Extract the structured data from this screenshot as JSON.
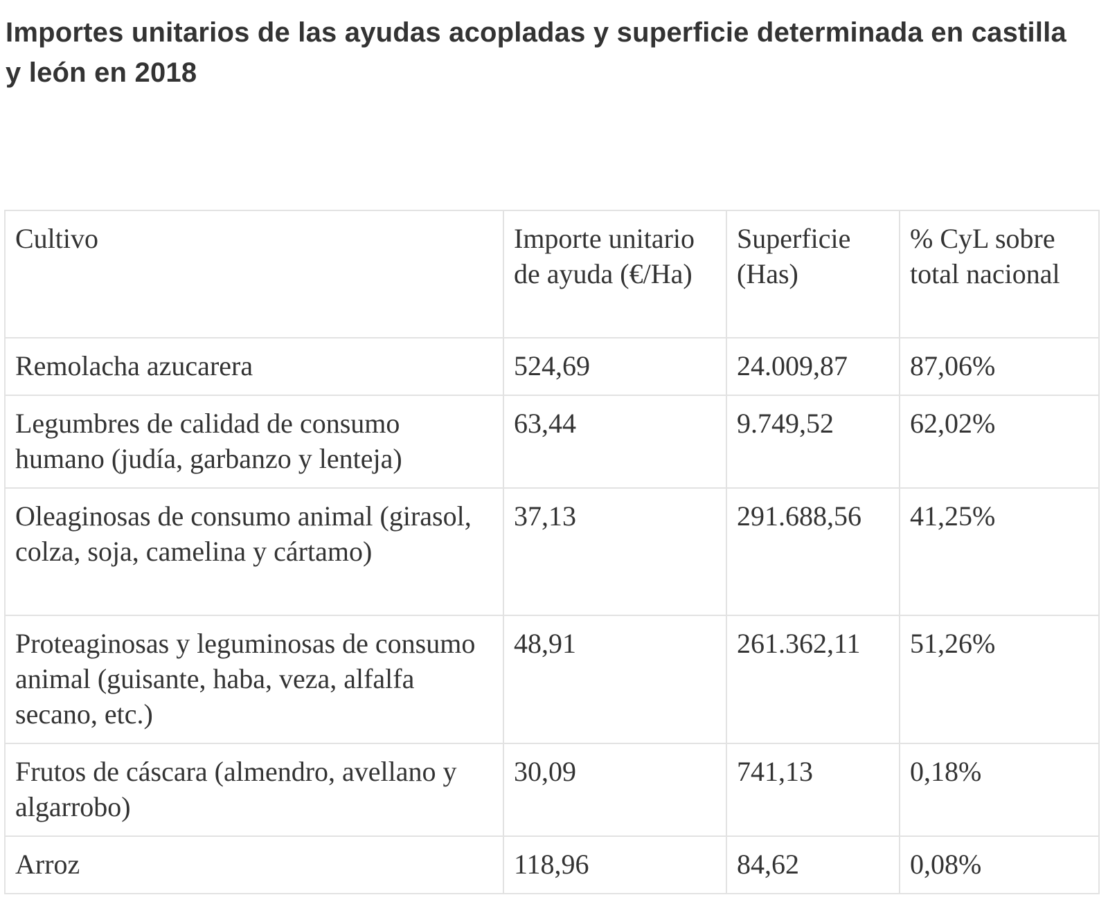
{
  "title": "Importes unitarios de las ayudas acopladas y superficie determinada en castilla y león en 2018",
  "table": {
    "headers": {
      "cultivo": "Cultivo",
      "importe": "Importe unitario de ayuda (€/Ha)",
      "superficie": "Superficie (Has)",
      "porcentaje": "% CyL sobre total nacional"
    },
    "rows": [
      {
        "cultivo": "Remolacha azucarera",
        "importe": "524,69",
        "superficie": "24.009,87",
        "porcentaje": "87,06%"
      },
      {
        "cultivo": "Legumbres de calidad de consumo humano (judía, garbanzo y lenteja)",
        "importe": "63,44",
        "superficie": "9.749,52",
        "porcentaje": "62,02%"
      },
      {
        "cultivo": "Oleaginosas de consumo animal (girasol, colza, soja, camelina y cártamo)",
        "importe": "37,13",
        "superficie": "291.688,56",
        "porcentaje": "41,25%"
      },
      {
        "cultivo": "Proteaginosas y leguminosas de consumo animal (guisante, haba, veza, alfalfa secano, etc.)",
        "importe": "48,91",
        "superficie": "261.362,11",
        "porcentaje": "51,26%"
      },
      {
        "cultivo": "Frutos de cáscara (almendro, avellano y algarrobo)",
        "importe": "30,09",
        "superficie": "741,13",
        "porcentaje": "0,18%"
      },
      {
        "cultivo": "Arroz",
        "importe": "118,96",
        "superficie": "84,62",
        "porcentaje": "0,08%"
      }
    ]
  }
}
